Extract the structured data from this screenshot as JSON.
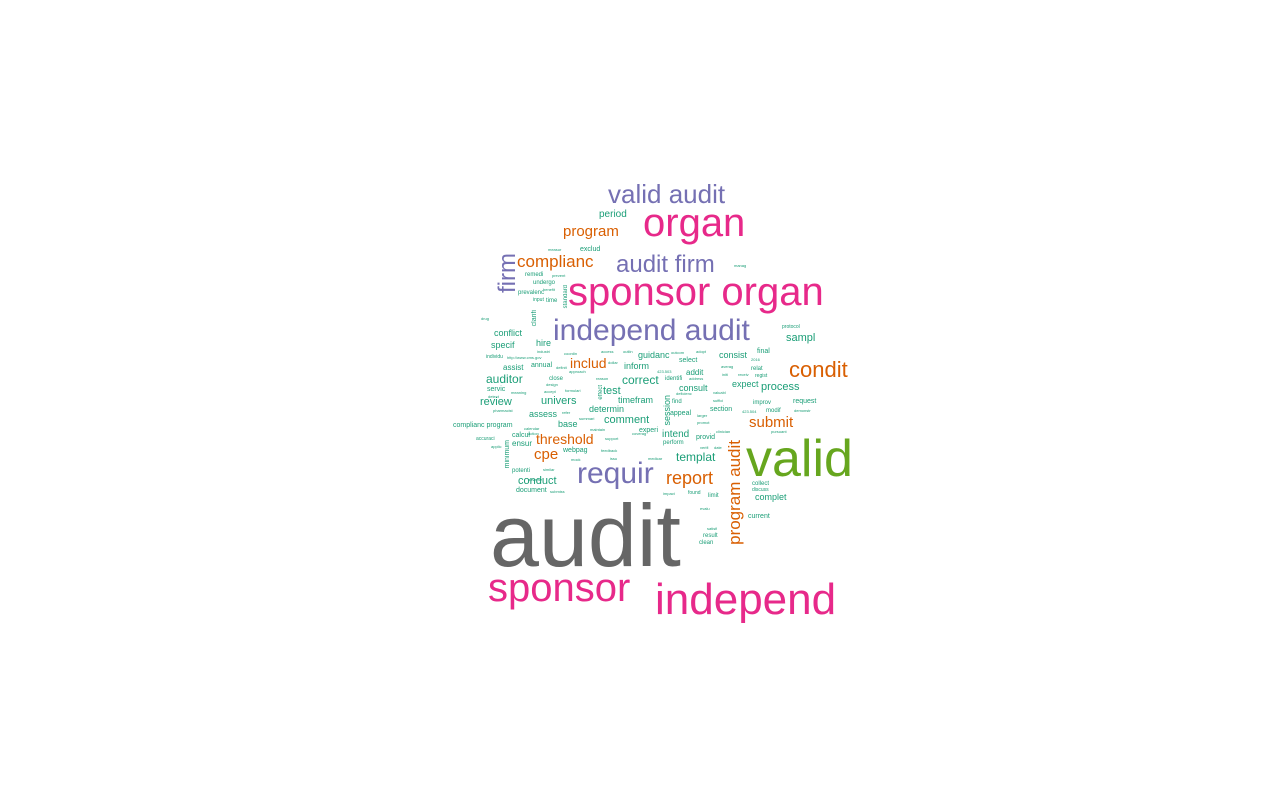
{
  "colors": {
    "gray": "#666666",
    "green": "#66a61e",
    "magenta": "#e7298a",
    "purple": "#7570b3",
    "orange": "#d95f02",
    "teal": "#1b9e77"
  },
  "words": [
    {
      "text": "audit",
      "color": "gray",
      "orientation": "horizontal"
    },
    {
      "text": "valid",
      "color": "green",
      "orientation": "horizontal"
    },
    {
      "text": "independ",
      "color": "magenta",
      "orientation": "horizontal"
    },
    {
      "text": "sponsor",
      "color": "magenta",
      "orientation": "horizontal"
    },
    {
      "text": "sponsor organ",
      "color": "magenta",
      "orientation": "horizontal"
    },
    {
      "text": "organ",
      "color": "magenta",
      "orientation": "horizontal"
    },
    {
      "text": "independ audit",
      "color": "purple",
      "orientation": "horizontal"
    },
    {
      "text": "requir",
      "color": "purple",
      "orientation": "horizontal"
    },
    {
      "text": "valid audit",
      "color": "purple",
      "orientation": "horizontal"
    },
    {
      "text": "audit firm",
      "color": "purple",
      "orientation": "horizontal"
    },
    {
      "text": "firm",
      "color": "purple",
      "orientation": "vertical"
    },
    {
      "text": "condit",
      "color": "orange",
      "orientation": "horizontal"
    },
    {
      "text": "complianc",
      "color": "orange",
      "orientation": "horizontal"
    },
    {
      "text": "program",
      "color": "orange",
      "orientation": "horizontal"
    },
    {
      "text": "report",
      "color": "orange",
      "orientation": "horizontal"
    },
    {
      "text": "program audit",
      "color": "orange",
      "orientation": "vertical"
    },
    {
      "text": "submit",
      "color": "orange",
      "orientation": "horizontal"
    },
    {
      "text": "threshold",
      "color": "orange",
      "orientation": "horizontal"
    },
    {
      "text": "includ",
      "color": "orange",
      "orientation": "horizontal"
    },
    {
      "text": "cpe",
      "color": "orange",
      "orientation": "horizontal"
    },
    {
      "text": "sampl",
      "color": "teal",
      "orientation": "horizontal"
    },
    {
      "text": "process",
      "color": "teal",
      "orientation": "horizontal"
    },
    {
      "text": "templat",
      "color": "teal",
      "orientation": "horizontal"
    },
    {
      "text": "auditor",
      "color": "teal",
      "orientation": "horizontal"
    },
    {
      "text": "univers",
      "color": "teal",
      "orientation": "horizontal"
    },
    {
      "text": "review",
      "color": "teal",
      "orientation": "horizontal"
    },
    {
      "text": "comment",
      "color": "teal",
      "orientation": "horizontal"
    },
    {
      "text": "correct",
      "color": "teal",
      "orientation": "horizontal"
    },
    {
      "text": "conduct",
      "color": "teal",
      "orientation": "horizontal"
    },
    {
      "text": "intend",
      "color": "teal",
      "orientation": "horizontal"
    },
    {
      "text": "period",
      "color": "teal",
      "orientation": "horizontal"
    },
    {
      "text": "conflict",
      "color": "teal",
      "orientation": "horizontal"
    },
    {
      "text": "hire",
      "color": "teal",
      "orientation": "horizontal"
    },
    {
      "text": "specif",
      "color": "teal",
      "orientation": "horizontal"
    },
    {
      "text": "assess",
      "color": "teal",
      "orientation": "horizontal"
    },
    {
      "text": "base",
      "color": "teal",
      "orientation": "horizontal"
    },
    {
      "text": "test",
      "color": "teal",
      "orientation": "horizontal"
    },
    {
      "text": "timefram",
      "color": "teal",
      "orientation": "horizontal"
    },
    {
      "text": "determin",
      "color": "teal",
      "orientation": "horizontal"
    },
    {
      "text": "inform",
      "color": "teal",
      "orientation": "horizontal"
    },
    {
      "text": "guidanc",
      "color": "teal",
      "orientation": "horizontal"
    },
    {
      "text": "consist",
      "color": "teal",
      "orientation": "horizontal"
    },
    {
      "text": "final",
      "color": "teal",
      "orientation": "horizontal"
    },
    {
      "text": "expect",
      "color": "teal",
      "orientation": "horizontal"
    },
    {
      "text": "consult",
      "color": "teal",
      "orientation": "horizontal"
    },
    {
      "text": "request",
      "color": "teal",
      "orientation": "horizontal"
    },
    {
      "text": "complet",
      "color": "teal",
      "orientation": "horizontal"
    },
    {
      "text": "current",
      "color": "teal",
      "orientation": "horizontal"
    },
    {
      "text": "document",
      "color": "teal",
      "orientation": "horizontal"
    },
    {
      "text": "assist",
      "color": "teal",
      "orientation": "horizontal"
    },
    {
      "text": "annual",
      "color": "teal",
      "orientation": "horizontal"
    },
    {
      "text": "servic",
      "color": "teal",
      "orientation": "horizontal"
    },
    {
      "text": "ensur",
      "color": "teal",
      "orientation": "horizontal"
    },
    {
      "text": "calcul",
      "color": "teal",
      "orientation": "horizontal"
    },
    {
      "text": "webpag",
      "color": "teal",
      "orientation": "horizontal"
    },
    {
      "text": "experi",
      "color": "teal",
      "orientation": "horizontal"
    },
    {
      "text": "provid",
      "color": "teal",
      "orientation": "horizontal"
    },
    {
      "text": "perform",
      "color": "teal",
      "orientation": "horizontal"
    },
    {
      "text": "section",
      "color": "teal",
      "orientation": "horizontal"
    },
    {
      "text": "improv",
      "color": "teal",
      "orientation": "horizontal"
    },
    {
      "text": "modif",
      "color": "teal",
      "orientation": "horizontal"
    },
    {
      "text": "addit",
      "color": "teal",
      "orientation": "horizontal"
    },
    {
      "text": "select",
      "color": "teal",
      "orientation": "horizontal"
    },
    {
      "text": "identifi",
      "color": "teal",
      "orientation": "horizontal"
    },
    {
      "text": "appeal",
      "color": "teal",
      "orientation": "horizontal"
    },
    {
      "text": "find",
      "color": "teal",
      "orientation": "horizontal"
    },
    {
      "text": "exclud",
      "color": "teal",
      "orientation": "horizontal"
    },
    {
      "text": "remedi",
      "color": "teal",
      "orientation": "horizontal"
    },
    {
      "text": "undergo",
      "color": "teal",
      "orientation": "horizontal"
    },
    {
      "text": "prevalenc",
      "color": "teal",
      "orientation": "horizontal"
    },
    {
      "text": "time",
      "color": "teal",
      "orientation": "horizontal"
    },
    {
      "text": "input",
      "color": "teal",
      "orientation": "horizontal"
    },
    {
      "text": "complianc program",
      "color": "teal",
      "orientation": "horizontal"
    },
    {
      "text": "potenti",
      "color": "teal",
      "orientation": "horizontal"
    },
    {
      "text": "collect",
      "color": "teal",
      "orientation": "horizontal"
    },
    {
      "text": "discuss",
      "color": "teal",
      "orientation": "horizontal"
    },
    {
      "text": "limit",
      "color": "teal",
      "orientation": "horizontal"
    },
    {
      "text": "result",
      "color": "teal",
      "orientation": "horizontal"
    },
    {
      "text": "clean",
      "color": "teal",
      "orientation": "horizontal"
    },
    {
      "text": "found",
      "color": "teal",
      "orientation": "horizontal"
    },
    {
      "text": "regist",
      "color": "teal",
      "orientation": "horizontal"
    },
    {
      "text": "relat",
      "color": "teal",
      "orientation": "horizontal"
    },
    {
      "text": "close",
      "color": "teal",
      "orientation": "horizontal"
    },
    {
      "text": "accuraci",
      "color": "teal",
      "orientation": "horizontal"
    },
    {
      "text": "standard",
      "color": "teal",
      "orientation": "vertical"
    },
    {
      "text": "minimum",
      "color": "teal",
      "orientation": "vertical"
    },
    {
      "text": "session",
      "color": "teal",
      "orientation": "vertical"
    },
    {
      "text": "clarifi",
      "color": "teal",
      "orientation": "vertical"
    },
    {
      "text": "effect",
      "color": "teal",
      "orientation": "vertical"
    },
    {
      "text": "manag",
      "color": "teal",
      "orientation": "horizontal"
    },
    {
      "text": "protocol",
      "color": "teal",
      "orientation": "horizontal"
    },
    {
      "text": "drug",
      "color": "teal",
      "orientation": "horizontal"
    },
    {
      "text": "measur",
      "color": "teal",
      "orientation": "horizontal"
    },
    {
      "text": "prevent",
      "color": "teal",
      "orientation": "horizontal"
    },
    {
      "text": "benefit",
      "color": "teal",
      "orientation": "horizontal"
    },
    {
      "text": "http://www.cms.gov",
      "color": "teal",
      "orientation": "horizontal"
    },
    {
      "text": "individu",
      "color": "teal",
      "orientation": "horizontal"
    },
    {
      "text": "coordin",
      "color": "teal",
      "orientation": "horizontal"
    },
    {
      "text": "access",
      "color": "teal",
      "orientation": "horizontal"
    },
    {
      "text": "industri",
      "color": "teal",
      "orientation": "horizontal"
    },
    {
      "text": "outcom",
      "color": "teal",
      "orientation": "horizontal"
    },
    {
      "text": "approach",
      "color": "teal",
      "orientation": "horizontal"
    },
    {
      "text": "pharmacist",
      "color": "teal",
      "orientation": "horizontal"
    },
    {
      "text": "calendar",
      "color": "teal",
      "orientation": "horizontal"
    },
    {
      "text": "action",
      "color": "teal",
      "orientation": "horizontal"
    },
    {
      "text": "summari",
      "color": "teal",
      "orientation": "horizontal"
    },
    {
      "text": "maintain",
      "color": "teal",
      "orientation": "horizontal"
    },
    {
      "text": "support",
      "color": "teal",
      "orientation": "horizontal"
    },
    {
      "text": "feedback",
      "color": "teal",
      "orientation": "horizontal"
    },
    {
      "text": "coverag",
      "color": "teal",
      "orientation": "horizontal"
    },
    {
      "text": "medicar",
      "color": "teal",
      "orientation": "horizontal"
    },
    {
      "text": "impact",
      "color": "teal",
      "orientation": "horizontal"
    },
    {
      "text": "evalu",
      "color": "teal",
      "orientation": "horizontal"
    },
    {
      "text": "satisfi",
      "color": "teal",
      "orientation": "horizontal"
    },
    {
      "text": "clinician",
      "color": "teal",
      "orientation": "horizontal"
    },
    {
      "text": "verifi",
      "color": "teal",
      "orientation": "horizontal"
    },
    {
      "text": "date",
      "color": "teal",
      "orientation": "horizontal"
    },
    {
      "text": "demonstr",
      "color": "teal",
      "orientation": "horizontal"
    },
    {
      "text": "pursuant",
      "color": "teal",
      "orientation": "horizontal"
    },
    {
      "text": "promot",
      "color": "teal",
      "orientation": "horizontal"
    },
    {
      "text": "larger",
      "color": "teal",
      "orientation": "horizontal"
    },
    {
      "text": "423.504",
      "color": "teal",
      "orientation": "horizontal"
    },
    {
      "text": "423.503",
      "color": "teal",
      "orientation": "horizontal"
    },
    {
      "text": "2016",
      "color": "teal",
      "orientation": "horizontal"
    },
    {
      "text": "receiv",
      "color": "teal",
      "orientation": "horizontal"
    },
    {
      "text": "initi",
      "color": "teal",
      "orientation": "horizontal"
    },
    {
      "text": "averag",
      "color": "teal",
      "orientation": "horizontal"
    },
    {
      "text": "adopt",
      "color": "teal",
      "orientation": "horizontal"
    },
    {
      "text": "similar",
      "color": "teal",
      "orientation": "horizontal"
    },
    {
      "text": "adverse",
      "color": "teal",
      "orientation": "horizontal"
    },
    {
      "text": "submiss",
      "color": "teal",
      "orientation": "horizontal"
    },
    {
      "text": "mock",
      "color": "teal",
      "orientation": "horizontal"
    },
    {
      "text": "meaning",
      "color": "teal",
      "orientation": "horizontal"
    },
    {
      "text": "formulari",
      "color": "teal",
      "orientation": "horizontal"
    },
    {
      "text": "definit",
      "color": "teal",
      "orientation": "horizontal"
    },
    {
      "text": "applic",
      "color": "teal",
      "orientation": "horizontal"
    },
    {
      "text": "issu",
      "color": "teal",
      "orientation": "horizontal"
    },
    {
      "text": "refer",
      "color": "teal",
      "orientation": "horizontal"
    },
    {
      "text": "accept",
      "color": "teal",
      "orientation": "horizontal"
    },
    {
      "text": "address",
      "color": "teal",
      "orientation": "horizontal"
    },
    {
      "text": "deficienc",
      "color": "teal",
      "orientation": "horizontal"
    },
    {
      "text": "reason",
      "color": "teal",
      "orientation": "horizontal"
    },
    {
      "text": "detect",
      "color": "teal",
      "orientation": "horizontal"
    },
    {
      "text": "design",
      "color": "teal",
      "orientation": "horizontal"
    },
    {
      "text": "dollar",
      "color": "teal",
      "orientation": "horizontal"
    },
    {
      "text": "outlin",
      "color": "teal",
      "orientation": "horizontal"
    },
    {
      "text": "suffici",
      "color": "teal",
      "orientation": "horizontal"
    },
    {
      "text": "valuabl",
      "color": "teal",
      "orientation": "horizontal"
    }
  ]
}
